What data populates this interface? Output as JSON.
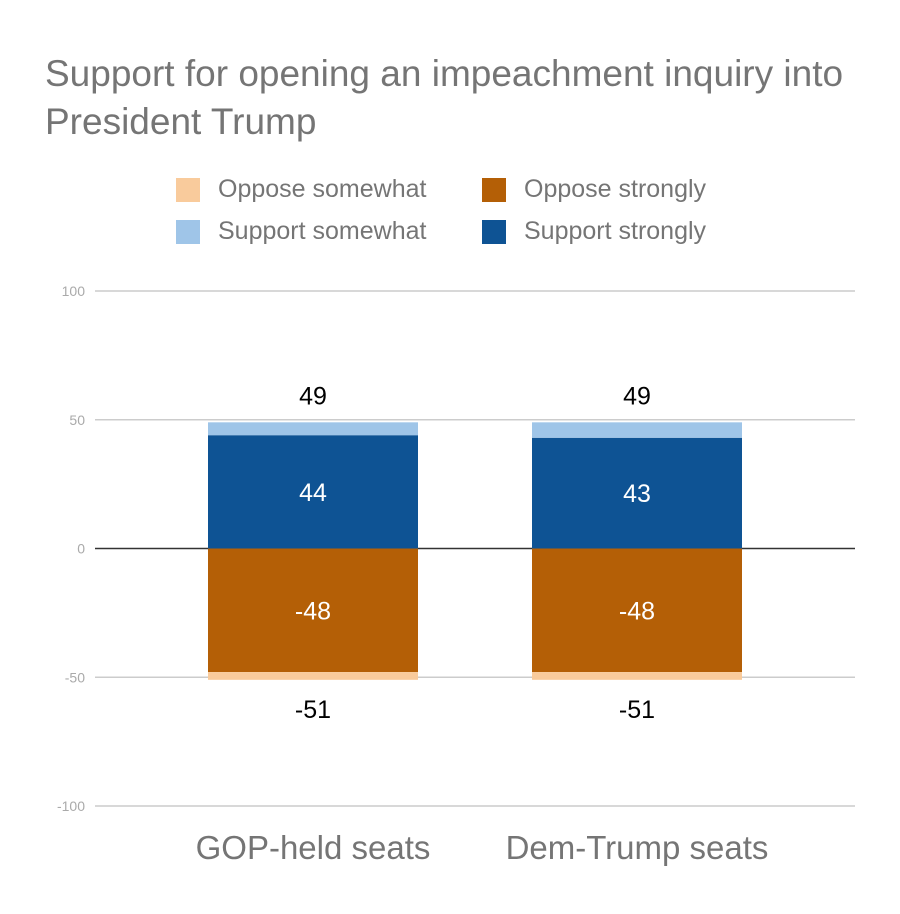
{
  "chart_data": {
    "type": "bar",
    "stacked": true,
    "title": "Support for opening an impeachment inquiry into President Trump",
    "categories": [
      "GOP-held seats",
      "Dem-Trump seats"
    ],
    "series": [
      {
        "name": "Support strongly",
        "values": [
          44,
          43
        ],
        "color": "#0e5394"
      },
      {
        "name": "Support somewhat",
        "values": [
          5,
          6
        ],
        "color": "#9fc5e8"
      },
      {
        "name": "Oppose strongly",
        "values": [
          -48,
          -48
        ],
        "color": "#b45f06"
      },
      {
        "name": "Oppose somewhat",
        "values": [
          -3,
          -3
        ],
        "color": "#f9cb9c"
      }
    ],
    "legend_order": [
      "Oppose somewhat",
      "Oppose strongly",
      "Support somewhat",
      "Support strongly"
    ],
    "total_labels": {
      "positive": [
        "49",
        "49"
      ],
      "negative": [
        "-51",
        "-51"
      ]
    },
    "inner_labels": {
      "Support strongly": [
        "44",
        "43"
      ],
      "Oppose strongly": [
        "-48",
        "-48"
      ]
    },
    "ylim": [
      -100,
      100
    ],
    "yticks": [
      "100",
      "50",
      "0",
      "-50",
      "-100"
    ],
    "grid": true,
    "legend_position": "top",
    "xlabel": "",
    "ylabel": ""
  }
}
